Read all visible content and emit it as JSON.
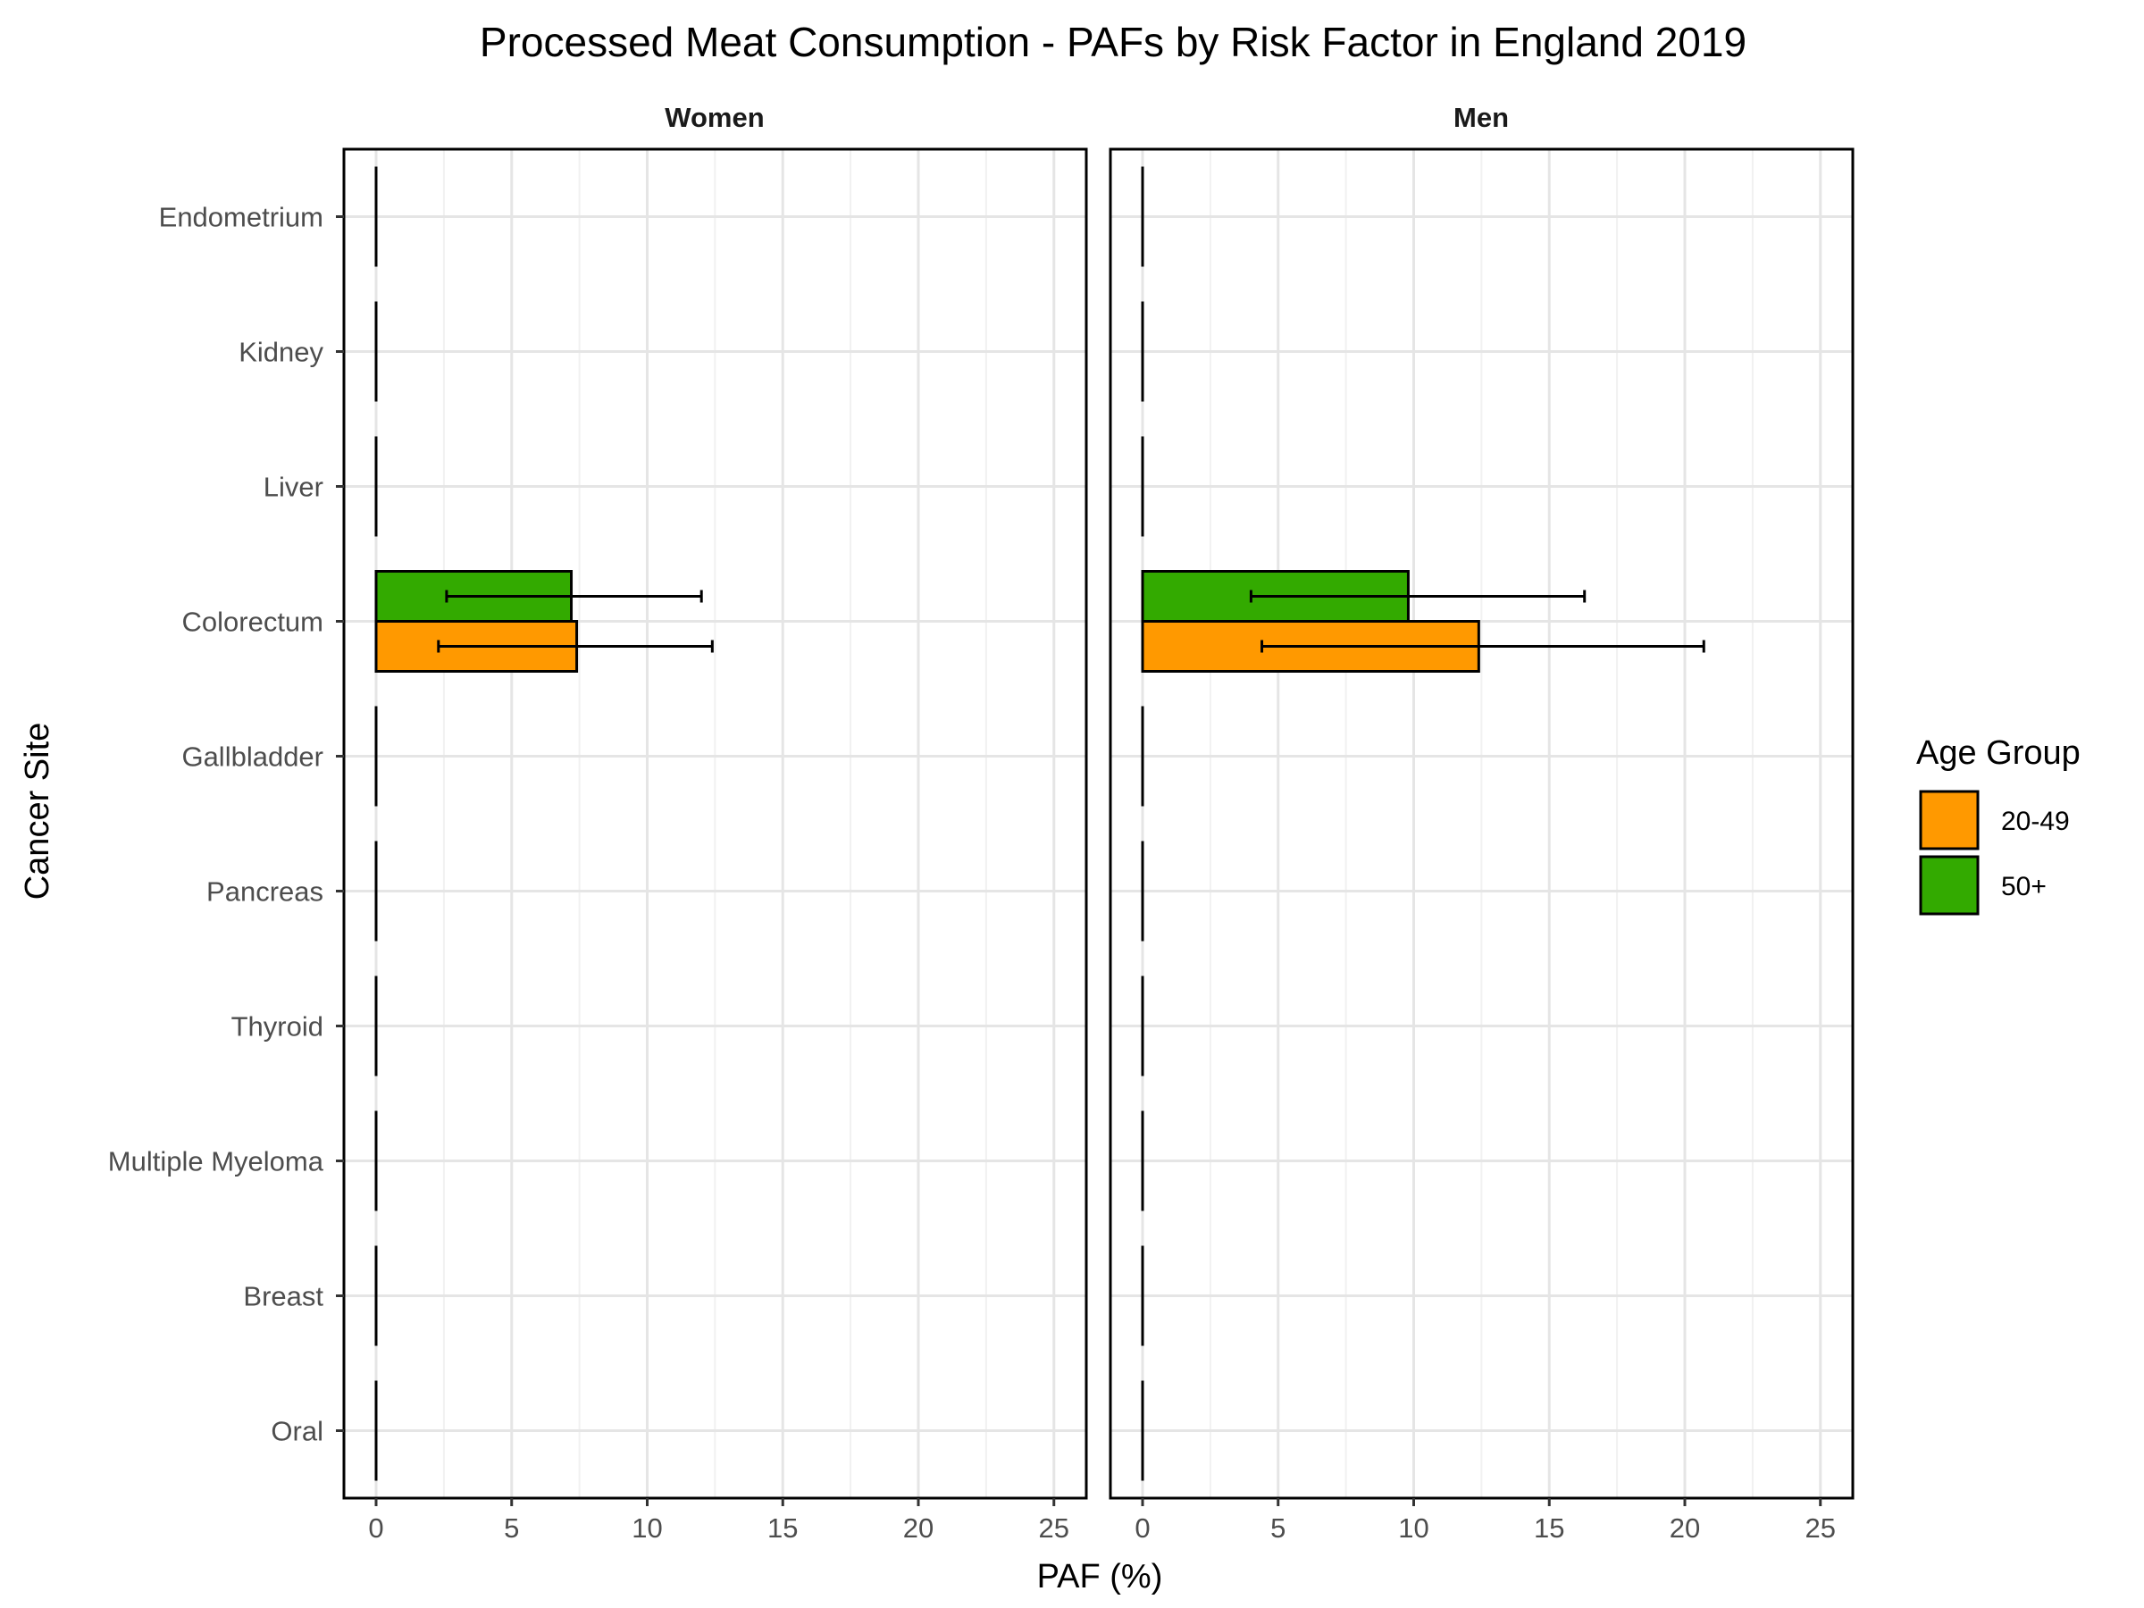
{
  "chart_data": {
    "type": "bar",
    "orientation": "horizontal",
    "title": "Processed Meat Consumption  - PAFs by Risk Factor in England 2019",
    "xlabel": "PAF (%)",
    "ylabel": "Cancer Site",
    "xlim": [
      0,
      25
    ],
    "xticks": [
      "0",
      "5",
      "10",
      "15",
      "20",
      "25"
    ],
    "categories": [
      "Endometrium",
      "Kidney",
      "Liver",
      "Colorectum",
      "Gallbladder",
      "Pancreas",
      "Thyroid",
      "Multiple Myeloma",
      "Breast",
      "Oral"
    ],
    "grid": true,
    "legend": {
      "title": "Age Group",
      "position": "right",
      "entries": [
        {
          "label": "20-49",
          "color": "#FF9900"
        },
        {
          "label": "50+",
          "color": "#33AA00"
        }
      ]
    },
    "panels": [
      {
        "name": "Women",
        "series": [
          {
            "name": "20-49",
            "color": "#FF9900",
            "values": [
              0,
              0,
              0,
              7.4,
              0,
              0,
              0,
              0,
              0,
              0
            ],
            "lower": [
              null,
              null,
              null,
              2.3,
              null,
              null,
              null,
              null,
              null,
              null
            ],
            "upper": [
              null,
              null,
              null,
              12.4,
              null,
              null,
              null,
              null,
              null,
              null
            ]
          },
          {
            "name": "50+",
            "color": "#33AA00",
            "values": [
              0,
              0,
              0,
              7.2,
              0,
              0,
              0,
              0,
              0,
              0
            ],
            "lower": [
              null,
              null,
              null,
              2.6,
              null,
              null,
              null,
              null,
              null,
              null
            ],
            "upper": [
              null,
              null,
              null,
              12.0,
              null,
              null,
              null,
              null,
              null,
              null
            ]
          }
        ]
      },
      {
        "name": "Men",
        "series": [
          {
            "name": "20-49",
            "color": "#FF9900",
            "values": [
              0,
              0,
              0,
              12.4,
              0,
              0,
              0,
              0,
              0,
              0
            ],
            "lower": [
              null,
              null,
              null,
              4.4,
              null,
              null,
              null,
              null,
              null,
              null
            ],
            "upper": [
              null,
              null,
              null,
              20.7,
              null,
              null,
              null,
              null,
              null,
              null
            ]
          },
          {
            "name": "50+",
            "color": "#33AA00",
            "values": [
              0,
              0,
              0,
              9.8,
              0,
              0,
              0,
              0,
              0,
              0
            ],
            "lower": [
              null,
              null,
              null,
              4.0,
              null,
              null,
              null,
              null,
              null,
              null
            ],
            "upper": [
              null,
              null,
              null,
              16.3,
              null,
              null,
              null,
              null,
              null,
              null
            ]
          }
        ]
      }
    ]
  }
}
